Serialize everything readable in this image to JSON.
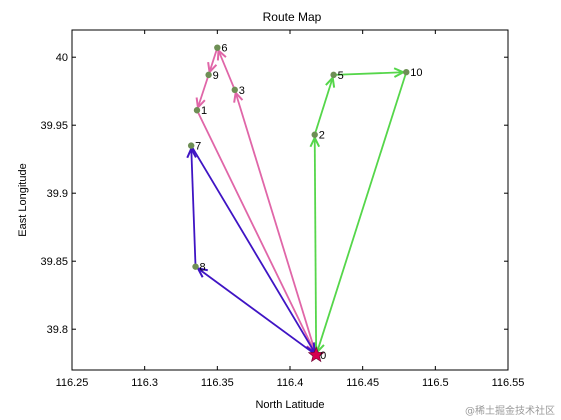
{
  "chart_data": {
    "type": "scatter",
    "title": "Route Map",
    "xlabel": "North Latitude",
    "ylabel": "East Longitude",
    "xlim": [
      116.25,
      116.55
    ],
    "ylim": [
      39.77,
      40.02
    ],
    "xticks": [
      "116.25",
      "116.3",
      "116.35",
      "116.4",
      "116.45",
      "116.5",
      "116.55"
    ],
    "yticks": [
      {
        "value": 39.8,
        "label": "39.8"
      },
      {
        "value": 39.85,
        "label": "39.85"
      },
      {
        "value": 39.9,
        "label": "39.9"
      },
      {
        "value": 39.95,
        "label": "39.95"
      },
      {
        "value": 40.0,
        "label": "40"
      }
    ],
    "nodes": [
      {
        "id": "0",
        "x": 116.418,
        "y": 39.781
      },
      {
        "id": "1",
        "x": 116.336,
        "y": 39.961
      },
      {
        "id": "2",
        "x": 116.417,
        "y": 39.943
      },
      {
        "id": "3",
        "x": 116.362,
        "y": 39.976
      },
      {
        "id": "5",
        "x": 116.43,
        "y": 39.987
      },
      {
        "id": "6",
        "x": 116.35,
        "y": 40.007
      },
      {
        "id": "7",
        "x": 116.332,
        "y": 39.935
      },
      {
        "id": "8",
        "x": 116.335,
        "y": 39.846
      },
      {
        "id": "9",
        "x": 116.344,
        "y": 39.987
      },
      {
        "id": "10",
        "x": 116.48,
        "y": 39.989
      }
    ],
    "routes": [
      {
        "color": "#e066a8",
        "path": [
          "0",
          "3",
          "6",
          "9",
          "1",
          "0"
        ]
      },
      {
        "color": "#3f14c4",
        "path": [
          "0",
          "8",
          "7",
          "0"
        ]
      },
      {
        "color": "#55d64a",
        "path": [
          "0",
          "2",
          "5",
          "10",
          "0"
        ]
      }
    ],
    "depot": {
      "id": "0",
      "marker": "star",
      "color": "#d6004f"
    },
    "node_color": "#6e8f55"
  },
  "footer": {
    "watermark": "@稀土掘金技术社区"
  }
}
